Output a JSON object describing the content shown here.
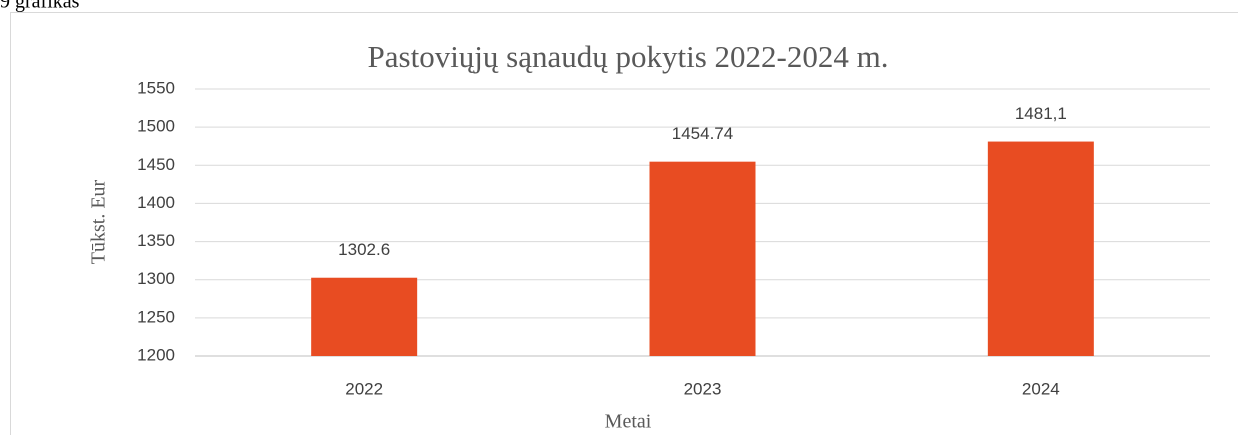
{
  "caption": "9 grafikas",
  "chart_data": {
    "type": "bar",
    "title": "Pastoviųjų sąnaudų pokytis 2022-2024 m.",
    "xlabel": "Metai",
    "ylabel": "Tūkst. Eur",
    "categories": [
      "2022",
      "2023",
      "2024"
    ],
    "values": [
      1302.6,
      1454.74,
      1481.1
    ],
    "value_labels": [
      "1302.6",
      "1454.74",
      "1481,1"
    ],
    "color": "#e84c22",
    "ylim": [
      1200,
      1550
    ],
    "yticks": [
      1200,
      1250,
      1300,
      1350,
      1400,
      1450,
      1500,
      1550
    ],
    "grid": true
  }
}
